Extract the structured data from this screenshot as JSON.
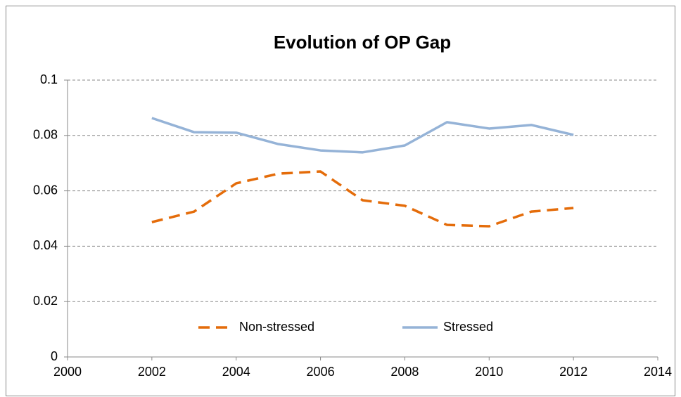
{
  "chart_data": {
    "type": "line",
    "title": "Evolution of OP Gap",
    "x": [
      2002,
      2003,
      2004,
      2005,
      2006,
      2007,
      2008,
      2009,
      2010,
      2011,
      2012
    ],
    "series": [
      {
        "name": "Non-stressed",
        "color": "#e46c0a",
        "dashed": true,
        "values": [
          0.0487,
          0.0525,
          0.0627,
          0.0662,
          0.067,
          0.0566,
          0.0546,
          0.0477,
          0.0472,
          0.0525,
          0.0538
        ]
      },
      {
        "name": "Stressed",
        "color": "#95b3d7",
        "dashed": false,
        "values": [
          0.0863,
          0.0812,
          0.081,
          0.0769,
          0.0746,
          0.0739,
          0.0764,
          0.0848,
          0.0825,
          0.0838,
          0.0802
        ]
      }
    ],
    "xlim": [
      2000,
      2014
    ],
    "xticks": [
      2000,
      2002,
      2004,
      2006,
      2008,
      2010,
      2012,
      2014
    ],
    "ylim": [
      0,
      0.1
    ],
    "yticks": [
      0,
      0.02,
      0.04,
      0.06,
      0.08,
      0.1
    ],
    "grid": true,
    "legend": "bottom"
  }
}
